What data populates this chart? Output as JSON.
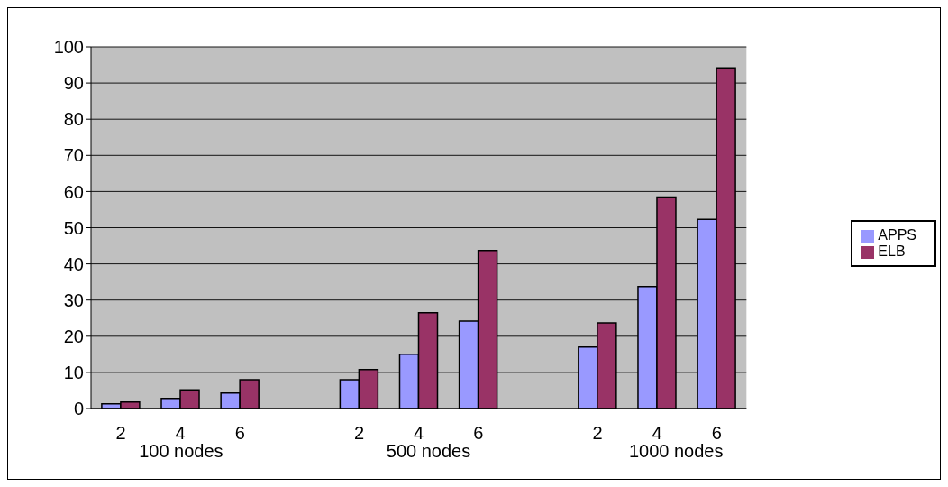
{
  "chart_data": {
    "type": "bar",
    "categories": [
      "2",
      "4",
      "6",
      null,
      "2",
      "4",
      "6",
      null,
      "2",
      "4",
      "6"
    ],
    "series": [
      {
        "name": "APPS",
        "color": "#9999ff",
        "values": [
          1.3,
          2.8,
          4.3,
          null,
          8,
          15,
          24.2,
          null,
          17,
          33.7,
          52.3
        ]
      },
      {
        "name": "ELB",
        "color": "#993366",
        "values": [
          1.8,
          5.2,
          8.0,
          null,
          10.8,
          26.5,
          43.7,
          null,
          23.7,
          58.5,
          94.2
        ]
      }
    ],
    "annotations": [
      "100 nodes",
      "500 nodes",
      "1000 nodes"
    ],
    "ylim": [
      0,
      100
    ],
    "yticks": [
      0,
      10,
      20,
      30,
      40,
      50,
      60,
      70,
      80,
      90,
      100
    ],
    "grid": "y",
    "legend": "right"
  }
}
